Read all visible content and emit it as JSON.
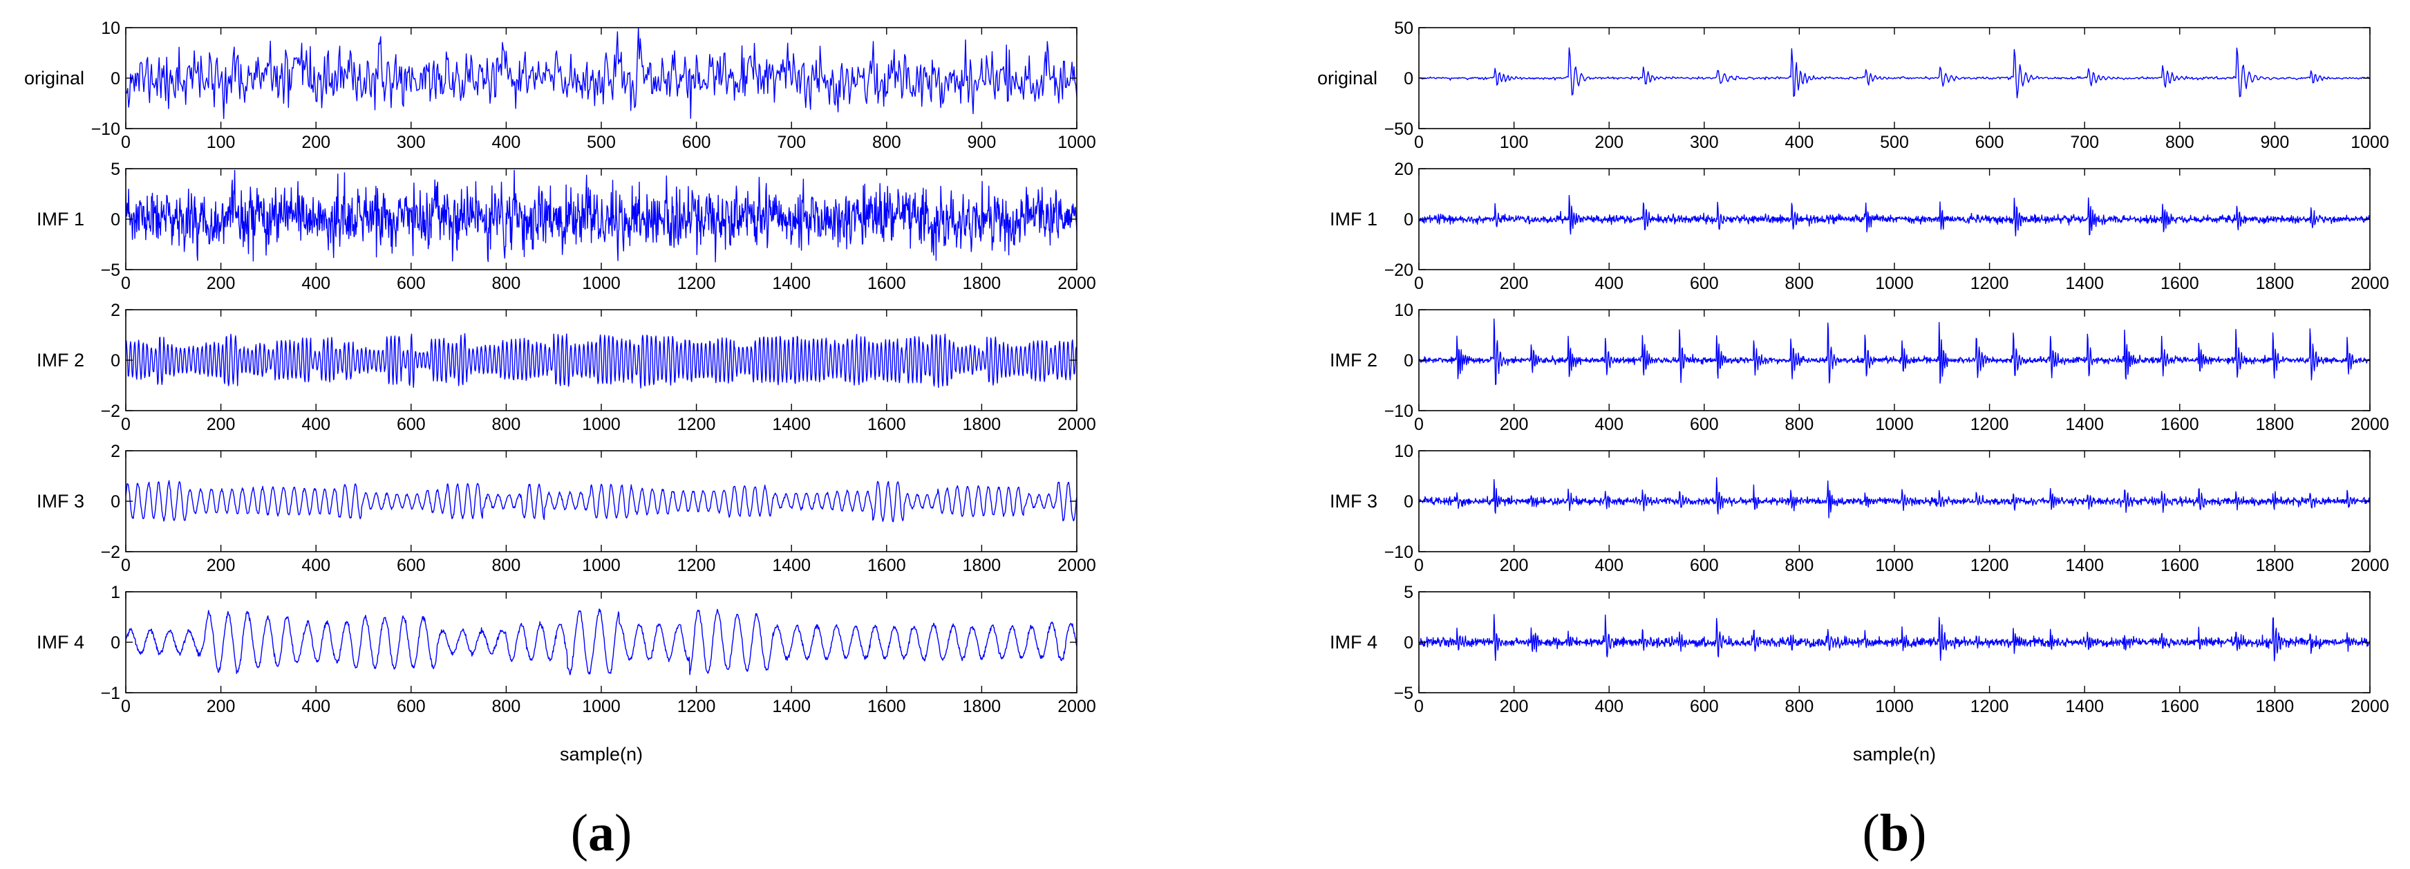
{
  "chart_data": [
    {
      "panel": "a",
      "type": "line",
      "xlabel": "sample(n)",
      "series": [
        {
          "name": "original",
          "xlim": [
            0,
            1000
          ],
          "ylim": [
            -10,
            10
          ],
          "xticks": [
            0,
            100,
            200,
            300,
            400,
            500,
            600,
            700,
            800,
            900,
            1000
          ],
          "yticks": [
            -10,
            0,
            10
          ],
          "signal": {
            "kind": "noise",
            "amplitude": 2.4,
            "seed": 11
          }
        },
        {
          "name": "IMF 1",
          "xlim": [
            0,
            2000
          ],
          "ylim": [
            -5,
            5
          ],
          "xticks": [
            0,
            200,
            400,
            600,
            800,
            1000,
            1200,
            1400,
            1600,
            1800,
            2000
          ],
          "yticks": [
            -5,
            0,
            5
          ],
          "signal": {
            "kind": "noise",
            "amplitude": 1.3,
            "seed": 23
          }
        },
        {
          "name": "IMF 2",
          "xlim": [
            0,
            2000
          ],
          "ylim": [
            -2,
            2
          ],
          "xticks": [
            0,
            200,
            400,
            600,
            800,
            1000,
            1200,
            1400,
            1600,
            1800,
            2000
          ],
          "yticks": [
            -2,
            0,
            2
          ],
          "signal": {
            "kind": "oscillation",
            "amplitude": 0.75,
            "period": 9,
            "seed": 37
          }
        },
        {
          "name": "IMF 3",
          "xlim": [
            0,
            2000
          ],
          "ylim": [
            -2,
            2
          ],
          "xticks": [
            0,
            200,
            400,
            600,
            800,
            1000,
            1200,
            1400,
            1600,
            1800,
            2000
          ],
          "yticks": [
            -2,
            0,
            2
          ],
          "signal": {
            "kind": "oscillation",
            "amplitude": 0.55,
            "period": 22,
            "seed": 41
          }
        },
        {
          "name": "IMF 4",
          "xlim": [
            0,
            2000
          ],
          "ylim": [
            -1,
            1
          ],
          "xticks": [
            0,
            200,
            400,
            600,
            800,
            1000,
            1200,
            1400,
            1600,
            1800,
            2000
          ],
          "yticks": [
            -1,
            0,
            1
          ],
          "signal": {
            "kind": "oscillation",
            "amplitude": 0.45,
            "period": 42,
            "seed": 53
          }
        }
      ]
    },
    {
      "panel": "b",
      "type": "line",
      "xlabel": "sample(n)",
      "series": [
        {
          "name": "original",
          "xlim": [
            0,
            1000
          ],
          "ylim": [
            -50,
            50
          ],
          "xticks": [
            0,
            100,
            200,
            300,
            400,
            500,
            600,
            700,
            800,
            900,
            1000
          ],
          "yticks": [
            -50,
            0,
            50
          ],
          "signal": {
            "kind": "impulses",
            "base": 1.2,
            "spike_period": 78,
            "spike_start": 80,
            "spike_amplitude": 14,
            "big_spikes": [
              160,
              393,
              628,
              861
            ],
            "big_amplitude": 32,
            "seed": 61
          }
        },
        {
          "name": "IMF 1",
          "xlim": [
            0,
            2000
          ],
          "ylim": [
            -20,
            20
          ],
          "xticks": [
            0,
            200,
            400,
            600,
            800,
            1000,
            1200,
            1400,
            1600,
            1800,
            2000
          ],
          "yticks": [
            -20,
            0,
            20
          ],
          "signal": {
            "kind": "impulses",
            "base": 1.5,
            "spike_period": 156,
            "spike_start": 160,
            "spike_amplitude": 10,
            "big_spikes": [],
            "big_amplitude": 14,
            "seed": 67
          }
        },
        {
          "name": "IMF 2",
          "xlim": [
            0,
            2000
          ],
          "ylim": [
            -10,
            10
          ],
          "xticks": [
            0,
            200,
            400,
            600,
            800,
            1000,
            1200,
            1400,
            1600,
            1800,
            2000
          ],
          "yticks": [
            -10,
            0,
            10
          ],
          "signal": {
            "kind": "impulses",
            "base": 0.6,
            "spike_period": 78,
            "spike_start": 80,
            "spike_amplitude": 6.5,
            "big_spikes": [
              160,
              860,
              1095
            ],
            "big_amplitude": 8.5,
            "seed": 71
          }
        },
        {
          "name": "IMF 3",
          "xlim": [
            0,
            2000
          ],
          "ylim": [
            -10,
            10
          ],
          "xticks": [
            0,
            200,
            400,
            600,
            800,
            1000,
            1200,
            1400,
            1600,
            1800,
            2000
          ],
          "yticks": [
            -10,
            0,
            10
          ],
          "signal": {
            "kind": "impulses",
            "base": 0.7,
            "spike_period": 78,
            "spike_start": 80,
            "spike_amplitude": 2.8,
            "big_spikes": [
              160,
              630,
              860
            ],
            "big_amplitude": 4.5,
            "seed": 79
          }
        },
        {
          "name": "IMF 4",
          "xlim": [
            0,
            2000
          ],
          "ylim": [
            -5,
            5
          ],
          "xticks": [
            0,
            200,
            400,
            600,
            800,
            1000,
            1200,
            1400,
            1600,
            1800,
            2000
          ],
          "yticks": [
            -5,
            0,
            5
          ],
          "signal": {
            "kind": "impulses",
            "base": 0.45,
            "spike_period": 78,
            "spike_start": 80,
            "spike_amplitude": 1.5,
            "big_spikes": [
              160,
              395,
              630,
              1095,
              1790
            ],
            "big_amplitude": 2.7,
            "seed": 83
          }
        }
      ]
    }
  ]
}
